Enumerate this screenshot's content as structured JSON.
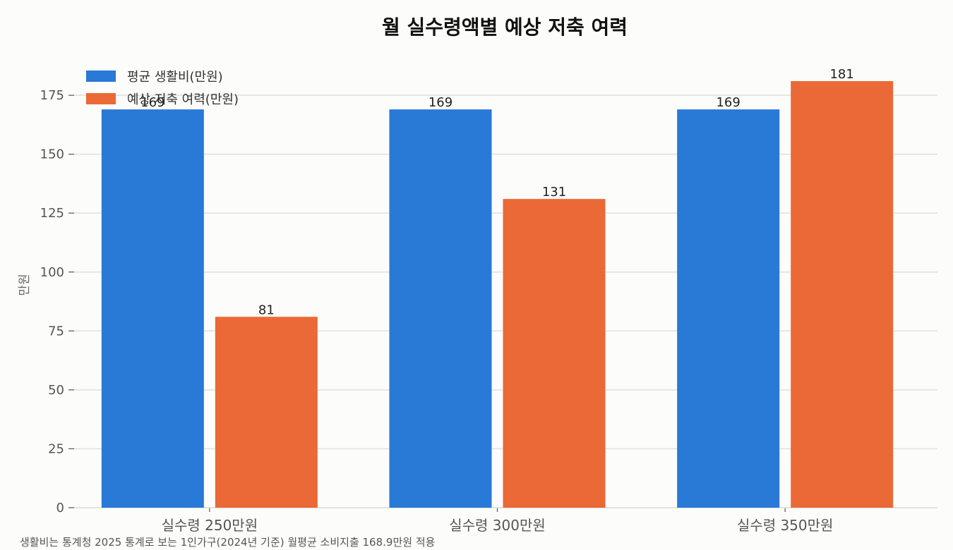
{
  "chart_data": {
    "type": "bar",
    "title": "월 실수령액별 예상 저축 여력",
    "xlabel": "",
    "ylabel": "만원",
    "categories": [
      "실수령 250만원",
      "실수령 300만원",
      "실수령 350만원"
    ],
    "series": [
      {
        "name": "평균 생활비(만원)",
        "color": "#2979d6",
        "values": [
          169,
          169,
          169
        ],
        "labels": [
          "169",
          "169",
          "169"
        ]
      },
      {
        "name": "예상 저축 여력(만원)",
        "color": "#eb6936",
        "values": [
          81,
          131,
          181
        ],
        "labels": [
          "81",
          "131",
          "181"
        ]
      }
    ],
    "ylim": [
      0,
      187
    ],
    "yticks": [
      0,
      25,
      50,
      75,
      100,
      125,
      150,
      175
    ],
    "ytick_labels": [
      "0",
      "25",
      "50",
      "75",
      "100",
      "125",
      "150",
      "175"
    ],
    "grid": "horizontal",
    "legend_position": "top-left",
    "footnote": "생활비는 통계청 2025 통계로 보는 1인가구(2024년 기준) 월평균 소비지출 168.9만원 적용"
  }
}
